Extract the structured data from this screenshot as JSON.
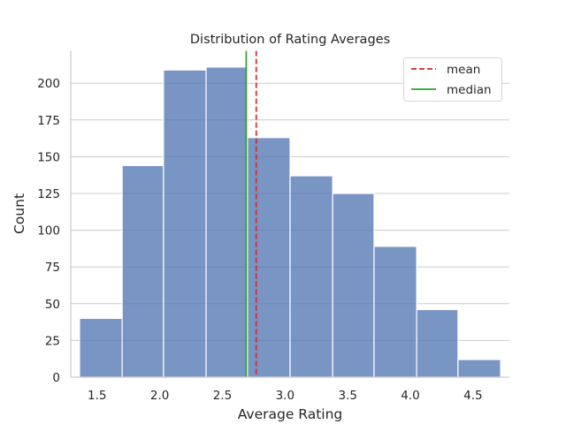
{
  "chart_data": {
    "type": "bar",
    "subtype": "histogram",
    "title": "Distribution of Rating Averages",
    "xlabel": "Average Rating",
    "ylabel": "Count",
    "xlim": [
      1.29,
      4.79
    ],
    "ylim": [
      0,
      222
    ],
    "xticks": [
      1.5,
      2.0,
      2.5,
      3.0,
      3.5,
      4.0,
      4.5
    ],
    "yticks": [
      0,
      25,
      50,
      75,
      100,
      125,
      150,
      175,
      200
    ],
    "bins": [
      {
        "start": 1.36,
        "end": 1.7,
        "count": 40
      },
      {
        "start": 1.7,
        "end": 2.03,
        "count": 144
      },
      {
        "start": 2.03,
        "end": 2.37,
        "count": 209
      },
      {
        "start": 2.37,
        "end": 2.7,
        "count": 211
      },
      {
        "start": 2.7,
        "end": 3.04,
        "count": 163
      },
      {
        "start": 3.04,
        "end": 3.38,
        "count": 137
      },
      {
        "start": 3.38,
        "end": 3.71,
        "count": 125
      },
      {
        "start": 3.71,
        "end": 4.05,
        "count": 89
      },
      {
        "start": 4.05,
        "end": 4.38,
        "count": 46
      },
      {
        "start": 4.38,
        "end": 4.72,
        "count": 12
      }
    ],
    "reference_lines": [
      {
        "name": "mean",
        "x": 2.77,
        "color": "#d62728",
        "style": "dashed"
      },
      {
        "name": "median",
        "x": 2.69,
        "color": "#2ca02c",
        "style": "solid"
      }
    ],
    "bar_color": "#4c72b0",
    "grid": "y",
    "legend_position": "top-right"
  }
}
